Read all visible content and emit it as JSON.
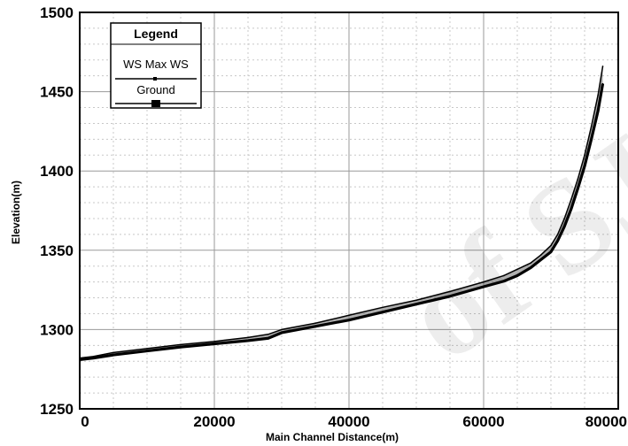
{
  "chart_data": {
    "type": "line",
    "title": "",
    "xlabel": "Main Channel Distance(m)",
    "ylabel": "Elevation(m)",
    "xlim": [
      0,
      80000
    ],
    "ylim": [
      1250,
      1500
    ],
    "x_ticks": [
      "0",
      "20000",
      "40000",
      "60000",
      "80000"
    ],
    "y_ticks": [
      "1250",
      "1300",
      "1350",
      "1400",
      "1450",
      "1500"
    ],
    "grid": true,
    "legend": {
      "title": "Legend",
      "placement": "top-left",
      "entries": [
        "WS Max WS",
        "Ground"
      ]
    },
    "series": [
      {
        "name": "WS Max WS",
        "color": "#000000",
        "x": [
          0,
          2000,
          5000,
          10000,
          15000,
          20000,
          25000,
          28000,
          30000,
          35000,
          40000,
          45000,
          50000,
          55000,
          60000,
          63000,
          65000,
          67000,
          68500,
          70000,
          71000,
          72000,
          73000,
          74000,
          75000,
          76000,
          77000,
          77700
        ],
        "y": [
          1282,
          1283,
          1285.5,
          1288,
          1290.5,
          1292.5,
          1295,
          1297,
          1300,
          1304,
          1309,
          1314,
          1318.5,
          1324,
          1330,
          1334,
          1338,
          1342,
          1347,
          1353,
          1360,
          1370,
          1382,
          1395,
          1410,
          1428,
          1448,
          1466
        ]
      },
      {
        "name": "Ground",
        "color": "#000000",
        "x": [
          0,
          2000,
          5000,
          10000,
          15000,
          20000,
          25000,
          28000,
          30000,
          35000,
          40000,
          45000,
          50000,
          55000,
          60000,
          63000,
          65000,
          67000,
          68500,
          70000,
          71000,
          72000,
          73000,
          74000,
          75000,
          76000,
          77000,
          77700
        ],
        "y": [
          1281,
          1282,
          1284,
          1286.5,
          1289,
          1291,
          1293,
          1294.5,
          1298,
          1302,
          1306,
          1311,
          1316,
          1321,
          1327,
          1330.5,
          1334,
          1339,
          1344,
          1349,
          1356,
          1365,
          1376,
          1389,
          1403,
          1420,
          1438,
          1455
        ]
      }
    ]
  },
  "watermark": "of SJ"
}
